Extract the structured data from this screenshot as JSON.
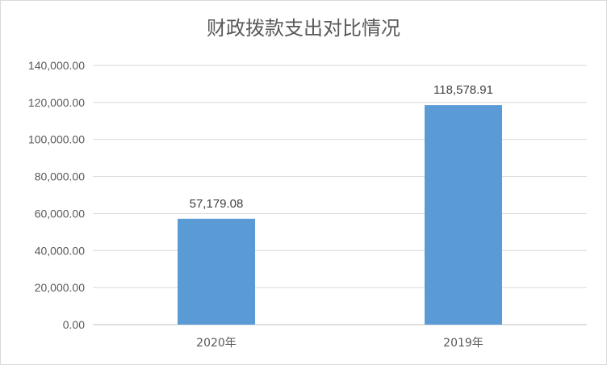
{
  "chart_data": {
    "type": "bar",
    "title": "财政拨款支出对比情况",
    "categories": [
      "2020年",
      "2019年"
    ],
    "values": [
      57179.08,
      118578.91
    ],
    "value_labels": [
      "57,179.08",
      "118,578.91"
    ],
    "y_tick_values": [
      0,
      20000,
      40000,
      60000,
      80000,
      100000,
      120000,
      140000
    ],
    "y_tick_labels": [
      "0.00",
      "20,000.00",
      "40,000.00",
      "60,000.00",
      "80,000.00",
      "100,000.00",
      "120,000.00",
      "140,000.00"
    ],
    "ylim": [
      0,
      140000
    ],
    "grid": true,
    "legend": "none",
    "colors": {
      "bar": "#5b9bd5",
      "grid": "#d9d9d9",
      "axis": "#bfbfbf"
    }
  }
}
